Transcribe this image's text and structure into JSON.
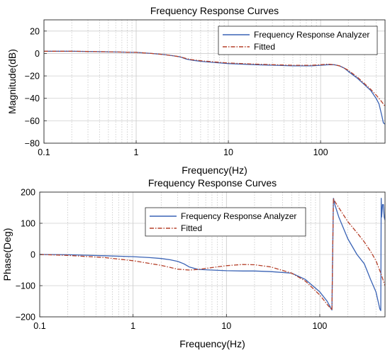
{
  "chart_data": [
    {
      "type": "line",
      "title": "Frequency Response Curves",
      "xlabel": "Frequency(Hz)",
      "ylabel": "Magnitude(dB)",
      "xscale": "log",
      "xlim": [
        0.1,
        500
      ],
      "ylim": [
        -80,
        30
      ],
      "xticks": [
        0.1,
        1,
        10,
        100
      ],
      "xtick_labels": [
        "0.1",
        "1",
        "10",
        "100"
      ],
      "yticks": [
        -80,
        -60,
        -40,
        -20,
        0,
        20
      ],
      "ytick_labels": [
        "−80",
        "−60",
        "−40",
        "−20",
        "0",
        "20"
      ],
      "grid": true,
      "legend_position": "top-right",
      "series": [
        {
          "name": "Frequency Response Analyzer",
          "color": "#3a63b5",
          "style": "solid",
          "x": [
            0.1,
            0.2,
            0.5,
            1,
            1.5,
            2,
            2.5,
            3,
            3.5,
            4,
            4.5,
            5,
            7,
            10,
            20,
            50,
            80,
            100,
            120,
            140,
            160,
            180,
            200,
            250,
            300,
            350,
            400,
            430,
            460,
            480,
            500
          ],
          "y": [
            2,
            2,
            1.5,
            1,
            0,
            -1,
            -2,
            -3,
            -5,
            -6,
            -6.5,
            -7,
            -8,
            -9,
            -10,
            -11,
            -11,
            -10.5,
            -10,
            -10,
            -11,
            -13,
            -16,
            -22,
            -28,
            -33,
            -40,
            -45,
            -55,
            -62,
            -63
          ]
        },
        {
          "name": "Fitted",
          "color": "#b5402a",
          "style": "dashdot",
          "x": [
            0.1,
            0.2,
            0.5,
            1,
            1.5,
            2,
            2.5,
            3,
            3.5,
            4,
            4.5,
            5,
            7,
            10,
            20,
            50,
            80,
            100,
            120,
            140,
            160,
            180,
            200,
            250,
            300,
            350,
            400,
            450,
            500
          ],
          "y": [
            2,
            2,
            1.5,
            1,
            0,
            -1,
            -2,
            -3,
            -4.5,
            -5.5,
            -6,
            -6.5,
            -7.5,
            -8.5,
            -9.5,
            -10.5,
            -10.5,
            -10,
            -9.5,
            -10,
            -11,
            -13,
            -15,
            -21,
            -27,
            -32,
            -37,
            -42,
            -47
          ]
        }
      ]
    },
    {
      "type": "line",
      "title": "Frequency Response Curves",
      "xlabel": "Frequency(Hz)",
      "ylabel": "Phase(Deg)",
      "xscale": "log",
      "xlim": [
        0.1,
        500
      ],
      "ylim": [
        -200,
        200
      ],
      "xticks": [
        0.1,
        1,
        10,
        100
      ],
      "xtick_labels": [
        "0.1",
        "1",
        "10",
        "100"
      ],
      "yticks": [
        -200,
        -100,
        0,
        100,
        200
      ],
      "ytick_labels": [
        "−200",
        "−100",
        "0",
        "100",
        "200"
      ],
      "grid": true,
      "legend_position": "top-center",
      "series": [
        {
          "name": "Frequency Response Analyzer",
          "color": "#3a63b5",
          "style": "solid",
          "x": [
            0.1,
            0.2,
            0.5,
            1,
            1.5,
            2,
            2.5,
            3,
            3.5,
            4,
            5,
            7,
            10,
            15,
            20,
            30,
            50,
            70,
            100,
            120,
            135,
            140,
            145,
            160,
            200,
            250,
            300,
            350,
            400,
            440,
            450,
            455,
            460,
            470,
            480,
            490,
            500
          ],
          "y": [
            0,
            -1,
            -4,
            -7,
            -10,
            -13,
            -17,
            -22,
            -30,
            -40,
            -48,
            -50,
            -52,
            -53,
            -53,
            -55,
            -60,
            -80,
            -120,
            -150,
            -178,
            180,
            160,
            120,
            50,
            0,
            -30,
            -80,
            -120,
            -175,
            -180,
            180,
            120,
            160,
            160,
            120,
            110
          ]
        },
        {
          "name": "Fitted",
          "color": "#b5402a",
          "style": "dashdot",
          "x": [
            0.1,
            0.2,
            0.5,
            1,
            2,
            3,
            4,
            5,
            7,
            10,
            15,
            20,
            30,
            50,
            70,
            100,
            120,
            135,
            140,
            145,
            160,
            200,
            250,
            300,
            350,
            400,
            450,
            500
          ],
          "y": [
            0,
            -3,
            -10,
            -20,
            -35,
            -47,
            -50,
            -48,
            -42,
            -36,
            -32,
            -33,
            -40,
            -60,
            -85,
            -130,
            -160,
            -178,
            180,
            170,
            150,
            105,
            70,
            40,
            10,
            -20,
            -60,
            -100
          ]
        }
      ]
    }
  ]
}
